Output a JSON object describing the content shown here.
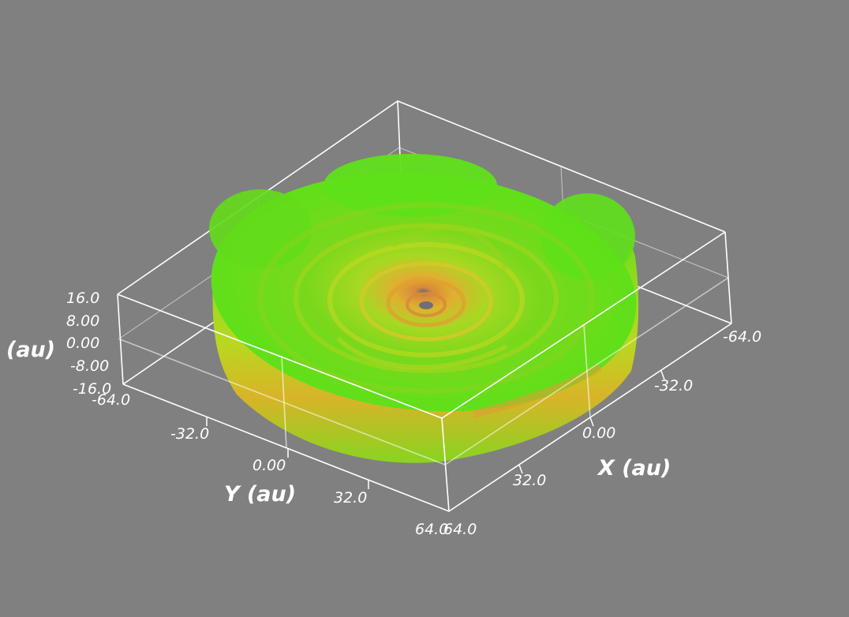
{
  "axes": {
    "x": {
      "label": "X (au)",
      "ticks": [
        "-64.0",
        "-32.0",
        "0.00",
        "32.0",
        "64.0"
      ]
    },
    "y": {
      "label": "Y (au)",
      "ticks": [
        "-64.0",
        "-32.0",
        "0.00",
        "32.0",
        "64.0"
      ]
    },
    "z": {
      "label": "(au)",
      "ticks": [
        "16.0",
        "8.00",
        "0.00",
        "-8.00",
        "-16.0"
      ]
    }
  },
  "colors": {
    "background": "#808080",
    "box_lines": "#ffffff",
    "disk_outer": "#5ee01a",
    "disk_mid": "#b4e01e",
    "disk_inner": "#e0a030"
  }
}
